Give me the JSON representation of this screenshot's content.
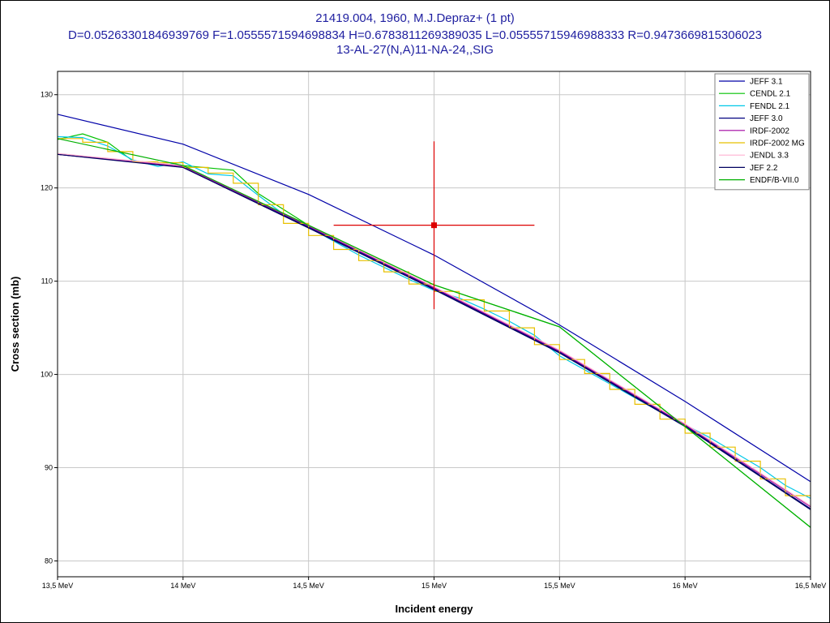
{
  "title": {
    "line1": "21419.004, 1960, M.J.Depraz+ (1 pt)",
    "line2": "D=0.05263301846939769 F=1.0555571594698834 H=0.6783811269389035 L=0.05555715946988333 R=0.9473669815306023",
    "line3": "13-AL-27(N,A)11-NA-24,,SIG"
  },
  "chart_data": {
    "type": "line",
    "xlabel": "Incident energy",
    "ylabel": "Cross section (mb)",
    "xlim": [
      13.5,
      16.5
    ],
    "ylim": [
      78.3,
      132.5
    ],
    "x_ticks": [
      13.5,
      14.0,
      14.5,
      15.0,
      15.5,
      16.0,
      16.5
    ],
    "x_tick_labels": [
      "13,5 MeV",
      "14 MeV",
      "14,5 MeV",
      "15 MeV",
      "15,5 MeV",
      "16 MeV",
      "16,5 MeV"
    ],
    "y_ticks": [
      80,
      90,
      100,
      110,
      120,
      130
    ],
    "y_tick_labels": [
      "80",
      "90",
      "100",
      "110",
      "120",
      "130"
    ],
    "grid": true,
    "legend_position": "top-right",
    "series": [
      {
        "name": "JEFF 3.1",
        "color": "#0000a8",
        "step": false,
        "x": [
          13.5,
          14.0,
          14.5,
          15.0,
          15.5,
          16.0,
          16.5
        ],
        "y": [
          127.9,
          124.7,
          119.3,
          112.8,
          105.3,
          97.1,
          88.5
        ]
      },
      {
        "name": "CENDL 2.1",
        "color": "#00c000",
        "step": false,
        "x": [
          13.5,
          13.6,
          13.7,
          13.8,
          14.0,
          14.2,
          14.3,
          14.5,
          15.0,
          15.5,
          16.0,
          16.5
        ],
        "y": [
          125.2,
          125.8,
          124.9,
          122.9,
          122.4,
          121.9,
          119.4,
          116.0,
          109.6,
          105.1,
          94.4,
          83.6
        ]
      },
      {
        "name": "FENDL 2.1",
        "color": "#00c8e8",
        "step": false,
        "x": [
          13.5,
          13.6,
          13.7,
          13.8,
          13.9,
          14.0,
          14.1,
          14.2,
          14.3,
          14.4,
          14.5,
          14.6,
          14.7,
          14.8,
          14.9,
          15.0,
          15.1,
          15.2,
          15.3,
          15.4,
          15.5,
          15.6,
          15.7,
          15.8,
          15.9,
          16.0,
          16.1,
          16.2,
          16.3,
          16.4,
          16.5
        ],
        "y": [
          125.5,
          125.4,
          124.5,
          123.0,
          122.3,
          122.8,
          121.5,
          121.3,
          119.2,
          117.2,
          115.8,
          114.3,
          112.8,
          111.5,
          110.2,
          109.0,
          108.2,
          107.0,
          105.7,
          104.2,
          102.0,
          100.5,
          99.0,
          97.5,
          96.0,
          94.6,
          93.2,
          91.6,
          90.0,
          88.1,
          86.7
        ]
      },
      {
        "name": "JEFF 3.0",
        "color": "#000080",
        "step": false,
        "x": [
          13.5,
          14.0,
          14.5,
          15.0,
          15.5,
          16.0,
          16.5
        ],
        "y": [
          123.6,
          122.3,
          115.8,
          109.2,
          102.4,
          94.5,
          85.6
        ]
      },
      {
        "name": "IRDF-2002",
        "color": "#a000a0",
        "step": false,
        "x": [
          13.5,
          14.0,
          14.5,
          15.0,
          15.5,
          16.0,
          16.5
        ],
        "y": [
          123.6,
          122.3,
          115.9,
          109.3,
          102.5,
          94.6,
          85.8
        ]
      },
      {
        "name": "IRDF-2002 MG",
        "color": "#e8c000",
        "step": true,
        "x": [
          13.5,
          13.6,
          13.7,
          13.8,
          13.9,
          14.0,
          14.1,
          14.2,
          14.3,
          14.4,
          14.5,
          14.6,
          14.7,
          14.8,
          14.9,
          15.0,
          15.1,
          15.2,
          15.3,
          15.4,
          15.5,
          15.6,
          15.7,
          15.8,
          15.9,
          16.0,
          16.1,
          16.2,
          16.3,
          16.4,
          16.5
        ],
        "y": [
          125.3,
          124.9,
          123.9,
          122.8,
          122.7,
          122.2,
          121.6,
          120.5,
          118.2,
          116.2,
          114.9,
          113.4,
          112.2,
          111.0,
          109.7,
          108.9,
          108.0,
          106.8,
          105.0,
          103.2,
          101.6,
          100.1,
          98.4,
          96.8,
          95.2,
          93.7,
          92.2,
          90.7,
          88.8,
          87.0,
          87.0
        ]
      },
      {
        "name": "JENDL 3.3",
        "color": "#ffb0d0",
        "step": false,
        "x": [
          13.5,
          14.0,
          14.5,
          15.0,
          15.5,
          16.0,
          16.5
        ],
        "y": [
          123.7,
          122.4,
          116.0,
          109.4,
          102.6,
          94.7,
          85.9
        ]
      },
      {
        "name": "JEF 2.2",
        "color": "#000060",
        "step": false,
        "x": [
          13.5,
          14.0,
          14.5,
          15.0,
          15.5,
          16.0,
          16.5
        ],
        "y": [
          123.6,
          122.2,
          115.7,
          109.1,
          102.3,
          94.4,
          85.5
        ]
      },
      {
        "name": "ENDF/B-VII.0",
        "color": "#00b000",
        "step": false,
        "x": [
          13.5,
          14.0,
          14.5,
          15.0,
          15.5,
          16.0,
          16.5
        ],
        "y": [
          125.3,
          122.4,
          116.0,
          109.6,
          105.1,
          94.4,
          83.6
        ]
      }
    ],
    "experimental": [
      {
        "x": 15.0,
        "y": 116.0,
        "x_error": 0.4,
        "y_error": 9.0,
        "color": "#dd0000"
      }
    ]
  }
}
